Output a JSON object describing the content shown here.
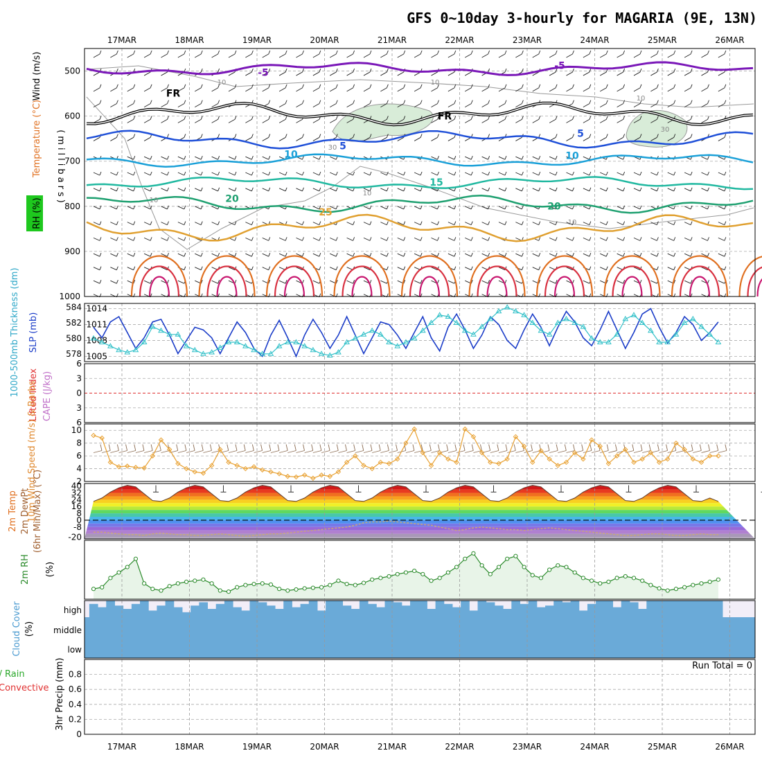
{
  "title": "GFS 0~10day 3-hourly for MAGARIA (9E, 13N)",
  "colors": {
    "temp_purple": "#7a17b8",
    "freezing": "#000000",
    "blue": "#1e4fd8",
    "cyan": "#1aa0d8",
    "teal": "#20b8a0",
    "green": "#1ea070",
    "orange": "#e0a030",
    "dorange": "#e07020",
    "red": "#d83040",
    "rh_shade": "#d8ecd8",
    "rh_contour": "#999999",
    "slp": "#1a3cc8",
    "thk": "#30c0c8",
    "li": "#e03030",
    "wind10": "#e8a030",
    "barb10": "#8a6a50",
    "rh2m": "#2a8a2a",
    "rh2m_fill": "#e8f4e8",
    "cloud": "#6aaad8",
    "cloud_bg": "#f2eef8"
  },
  "chart_data": [
    {
      "type": "line",
      "panel": "upper-air",
      "title": "GFS 0~10day 3-hourly for MAGARIA (9E, 13N)",
      "x_dates": [
        "17MAR",
        "18MAR",
        "19MAR",
        "20MAR",
        "21MAR",
        "22MAR",
        "23MAR",
        "24MAR",
        "25MAR",
        "26MAR"
      ],
      "ylabel": "(millibars)",
      "left_labels": [
        "Wind (m/s)",
        "Temperature (°C)",
        "RH (%)"
      ],
      "y_ticks": [
        500,
        600,
        700,
        800,
        900,
        1000
      ],
      "ylim": [
        1000,
        450
      ],
      "contour_labels": [
        "-5",
        "-5",
        "FR",
        "FR",
        "5",
        "5",
        "10",
        "10",
        "15",
        "20",
        "20",
        "25"
      ],
      "rh_labels": [
        "10",
        "10",
        "10",
        "10",
        "10",
        "30",
        "30",
        "10"
      ],
      "isotherm_levels_mb": {
        "-5": 495,
        "FR": 595,
        "5": 652,
        "10": 698,
        "15": 748,
        "20": 795,
        "25": 848
      }
    },
    {
      "type": "line",
      "panel": "slp-thickness",
      "left_label": "1000-500mb Thickness (dm)",
      "right_label": "SLP (mb)",
      "left_ticks": [
        578,
        580,
        582,
        584
      ],
      "right_ticks": [
        1005,
        1008,
        1011,
        1014
      ],
      "left_ylim": [
        577,
        584.5
      ],
      "right_ylim": [
        1004,
        1015
      ],
      "series": [
        {
          "name": "SLP",
          "axis": "right",
          "values": [
            1010.5,
            1008.5,
            1011.5,
            1012.5,
            1009.5,
            1006.5,
            1008.5,
            1011.5,
            1012.0,
            1009.0,
            1005.5,
            1008.0,
            1010.5,
            1010.0,
            1008.5,
            1005.5,
            1008.5,
            1011.5,
            1009.5,
            1006.5,
            1005.0,
            1009.0,
            1011.8,
            1008.5,
            1005.0,
            1009.0,
            1012.0,
            1009.5,
            1006.5,
            1009.0,
            1012.5,
            1009.0,
            1005.5,
            1008.5,
            1011.5,
            1011.0,
            1009.0,
            1006.5,
            1009.5,
            1012.5,
            1008.5,
            1006.0,
            1010.5,
            1013.0,
            1010.0,
            1006.5,
            1009.0,
            1012.5,
            1011.0,
            1008.0,
            1006.5,
            1010.0,
            1013.0,
            1010.5,
            1007.0,
            1010.5,
            1013.5,
            1011.5,
            1008.5,
            1007.0,
            1010.0,
            1013.5,
            1010.0,
            1006.5,
            1009.5,
            1013.0,
            1014.0,
            1010.5,
            1007.5,
            1009.5,
            1012.5,
            1011.0,
            1008.0,
            1009.5,
            1011.5
          ]
        },
        {
          "name": "Thickness",
          "axis": "left",
          "values": [
            580.0,
            579.5,
            579.0,
            578.5,
            578.2,
            578.5,
            579.5,
            581.5,
            581.0,
            580.5,
            580.5,
            579.0,
            578.5,
            578.0,
            578.2,
            578.8,
            579.5,
            579.5,
            579.0,
            578.5,
            578.0,
            578.0,
            579.0,
            579.5,
            579.5,
            579.0,
            578.5,
            578.0,
            577.8,
            578.2,
            579.5,
            580.0,
            580.5,
            581.0,
            580.5,
            579.5,
            579.0,
            579.5,
            580.0,
            581.0,
            582.0,
            583.0,
            582.8,
            582.0,
            581.0,
            580.5,
            581.5,
            582.5,
            583.5,
            584.0,
            583.5,
            583.0,
            582.0,
            581.0,
            580.5,
            582.0,
            582.5,
            582.0,
            581.5,
            580.0,
            579.5,
            579.5,
            580.5,
            582.5,
            583.0,
            582.0,
            581.0,
            579.5,
            579.5,
            580.5,
            582.0,
            582.5,
            581.5,
            580.5,
            579.5
          ]
        }
      ]
    },
    {
      "type": "line",
      "panel": "cape-li",
      "left_labels": [
        "Lifted Index",
        "CAPE (J/kg)"
      ],
      "y_ticks": [
        -6,
        -3,
        0,
        3,
        6
      ],
      "ylim": [
        -6,
        6
      ],
      "series": [
        {
          "name": "Lifted Index",
          "values": [
            0,
            0,
            0,
            0,
            0,
            0,
            0,
            0,
            0,
            0
          ]
        }
      ]
    },
    {
      "type": "line",
      "panel": "wind10m",
      "left_labels": [
        "10m Wind Speed (m/s) & Barbs"
      ],
      "y_ticks": [
        2,
        4,
        6,
        8,
        10
      ],
      "ylim": [
        2,
        11
      ],
      "series": [
        {
          "name": "10m Wind Speed",
          "values": [
            9.2,
            8.8,
            5.0,
            4.3,
            4.4,
            4.2,
            4.1,
            6.0,
            8.5,
            7.0,
            4.8,
            4.0,
            3.5,
            3.3,
            4.5,
            7.0,
            5.0,
            4.5,
            4.0,
            4.3,
            3.8,
            3.5,
            3.2,
            2.8,
            2.7,
            3.0,
            2.5,
            3.0,
            2.8,
            3.5,
            5.0,
            6.0,
            4.5,
            4.0,
            5.0,
            4.8,
            5.5,
            8.0,
            10.2,
            6.5,
            4.5,
            6.5,
            5.5,
            5.0,
            10.2,
            9.0,
            6.5,
            5.0,
            4.8,
            5.5,
            9.0,
            7.5,
            5.0,
            6.8,
            5.5,
            4.5,
            5.0,
            6.5,
            5.5,
            8.5,
            7.5,
            4.8,
            6.0,
            7.0,
            5.0,
            5.5,
            6.5,
            5.0,
            5.5,
            8.0,
            7.0,
            5.5,
            5.0,
            6.0,
            6.0
          ]
        }
      ]
    },
    {
      "type": "area",
      "panel": "temp-dewpt",
      "left_labels": [
        "2m Temp",
        "2m DewPt",
        "(6hr Min/Max) (°C)"
      ],
      "y_ticks": [
        -20,
        -8,
        0,
        8,
        16,
        24,
        32,
        40
      ],
      "ylim": [
        -22,
        43
      ],
      "series": [
        {
          "name": "2m Temp",
          "values": [
            22,
            26,
            33,
            38,
            41,
            39,
            31,
            23,
            22,
            26,
            33,
            38,
            41,
            39,
            31,
            23,
            22,
            26,
            33,
            38,
            41,
            39,
            31,
            23,
            22,
            26,
            33,
            38,
            41,
            39,
            31,
            23,
            22,
            26,
            33,
            38,
            41,
            39,
            31,
            23,
            22,
            26,
            33,
            38,
            41,
            39,
            31,
            23,
            22,
            26,
            33,
            38,
            41,
            39,
            31,
            23,
            22,
            26,
            33,
            38,
            41,
            39,
            31,
            23,
            22,
            26,
            33,
            38,
            41,
            39,
            31,
            23,
            22,
            26,
            22
          ]
        },
        {
          "name": "2m DewPt",
          "values": [
            -14,
            -14,
            -15,
            -16,
            -17,
            -17,
            -18,
            -16,
            -15,
            -16,
            -17,
            -17,
            -18,
            -18,
            -17,
            -16,
            -17,
            -18,
            -19,
            -18,
            -17,
            -16,
            -16,
            -15,
            -14,
            -13,
            -12,
            -11,
            -10,
            -9,
            -8,
            -6,
            -3,
            -2,
            -2,
            -1,
            -2,
            -3,
            -4,
            -5,
            -6,
            -8,
            -10,
            -12,
            -11,
            -9,
            -8,
            -9,
            -10,
            -11,
            -11,
            -12,
            -11,
            -10,
            -9,
            -10,
            -11,
            -12,
            -13,
            -14,
            -15,
            -16,
            -17,
            -18,
            -18,
            -17,
            -16,
            -16,
            -17,
            -18,
            -18,
            -17,
            -16,
            -17,
            -17
          ]
        }
      ]
    },
    {
      "type": "line",
      "panel": "rh2m",
      "left_labels": [
        "2m RH",
        "(%)"
      ],
      "ylim": [
        0,
        100
      ],
      "series": [
        {
          "name": "2m RH",
          "values": [
            15,
            18,
            35,
            45,
            55,
            70,
            25,
            15,
            12,
            20,
            25,
            28,
            30,
            32,
            25,
            12,
            10,
            18,
            22,
            24,
            25,
            23,
            15,
            12,
            14,
            16,
            17,
            18,
            22,
            30,
            24,
            22,
            26,
            32,
            35,
            38,
            42,
            45,
            48,
            42,
            30,
            35,
            45,
            55,
            70,
            80,
            58,
            42,
            55,
            70,
            75,
            55,
            40,
            35,
            50,
            58,
            55,
            45,
            35,
            30,
            25,
            28,
            35,
            38,
            35,
            30,
            22,
            16,
            12,
            15,
            18,
            22,
            25,
            28,
            32
          ]
        }
      ]
    },
    {
      "type": "bar",
      "panel": "cloud-cover",
      "left_labels": [
        "Cloud Cover",
        "(%)"
      ],
      "category_ticks": [
        "high",
        "middle",
        "low"
      ],
      "series": [
        {
          "name": "high cloud",
          "values": [
            80,
            60,
            100,
            70,
            50,
            80,
            100,
            40,
            70,
            100,
            60,
            30,
            70,
            90,
            50,
            80,
            100,
            60,
            40,
            100,
            90,
            70,
            50,
            100,
            60,
            80,
            100,
            40,
            100,
            100,
            70,
            50,
            100,
            80,
            60,
            100,
            90,
            70,
            100,
            100,
            50,
            100,
            80,
            60,
            100,
            40,
            100,
            90,
            70,
            50,
            100,
            80,
            100,
            60,
            70,
            100,
            90,
            100,
            40,
            80,
            100,
            100,
            60,
            100,
            90,
            50,
            100,
            100,
            100,
            100,
            100,
            100,
            100,
            100,
            100
          ]
        }
      ]
    },
    {
      "type": "bar",
      "panel": "precip",
      "left_labels": [
        "Total / Rain",
        "Convective",
        "3hr Precip (mm)"
      ],
      "annotation": "Run Total = 0",
      "y_ticks": [
        0,
        0.2,
        0.4,
        0.6,
        0.8
      ],
      "ylim": [
        0,
        1
      ],
      "x_dates": [
        "17MAR",
        "18MAR",
        "19MAR",
        "20MAR",
        "21MAR",
        "22MAR",
        "23MAR",
        "24MAR",
        "25MAR",
        "26MAR"
      ],
      "series": [
        {
          "name": "Total",
          "values": [
            0,
            0,
            0,
            0,
            0,
            0,
            0,
            0,
            0,
            0
          ]
        }
      ]
    }
  ]
}
